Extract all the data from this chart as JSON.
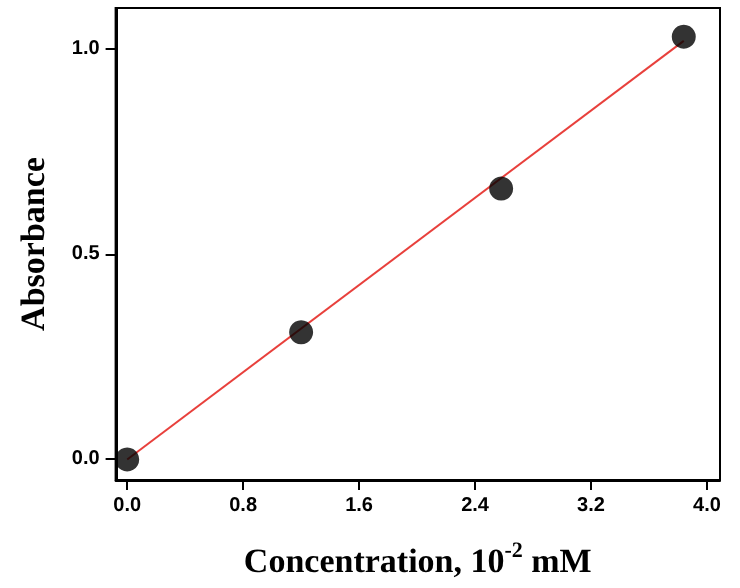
{
  "chart_data": {
    "type": "scatter",
    "xlabel": "Concentration, 10$^{-2}$ mM",
    "ylabel": "Absorbance",
    "xlim": [
      -0.08,
      4.09
    ],
    "ylim": [
      -0.05,
      1.1
    ],
    "xticks": [
      {
        "value": 0,
        "label": "0.0"
      },
      0.8,
      1.6,
      2.4,
      3.2,
      {
        "value": 4,
        "label": "4.0"
      }
    ],
    "yticks": [
      {
        "value": 0,
        "label": "0.0"
      },
      0.5,
      {
        "value": 1,
        "label": "1.0"
      }
    ],
    "series": [
      {
        "color": "#000000",
        "marker": "circle",
        "x": [
          0,
          1.2,
          2.58,
          3.84
        ],
        "values": [
          0,
          0.31,
          0.66,
          1.03
        ]
      },
      {
        "type": "line",
        "color": "#e8403c",
        "marker": "none",
        "line_style": "solid",
        "x": [
          0,
          3.84
        ],
        "values": [
          0,
          1.02
        ]
      }
    ],
    "grid": false
  }
}
